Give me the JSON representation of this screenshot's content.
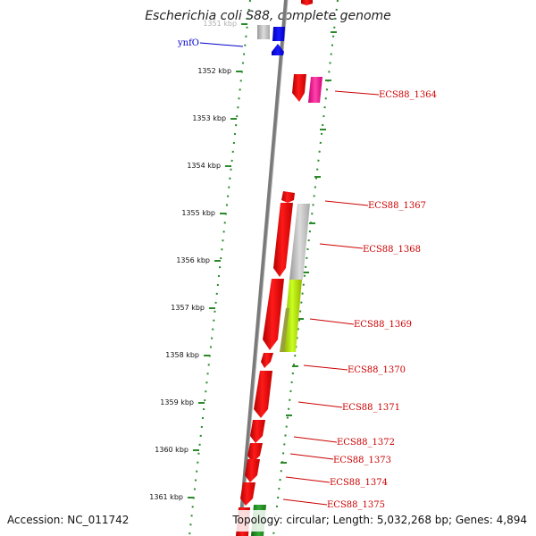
{
  "title": "Escherichia coli S88, complete genome",
  "accession": "Accession: NC_011742",
  "topology": "Topology: circular; Length: 5,032,268 bp; Genes: 4,894",
  "colors": {
    "backbone": "#7a7a7a",
    "forward_cds": "#ff0000",
    "reverse_cds": "#0000ff",
    "pseudo": "#c0c0c0",
    "pink": "#ff3399",
    "lime": "#b6f000",
    "olive": "#9aa040",
    "green": "#228822",
    "label_red": "#cc0000",
    "label_blue": "#0000cc",
    "tick_green": "#2a8a2a"
  },
  "kbp_ticks": [
    "1351 kbp",
    "1352 kbp",
    "1353 kbp",
    "1354 kbp",
    "1355 kbp",
    "1356 kbp",
    "1357 kbp",
    "1358 kbp",
    "1359 kbp",
    "1360 kbp",
    "1361 kbp"
  ],
  "gene_labels": [
    {
      "text": "ynfO",
      "color": "blue"
    },
    {
      "text": "ECS88_1364",
      "color": "red"
    },
    {
      "text": "ECS88_1367",
      "color": "red"
    },
    {
      "text": "ECS88_1368",
      "color": "red"
    },
    {
      "text": "ECS88_1369",
      "color": "red"
    },
    {
      "text": "ECS88_1370",
      "color": "red"
    },
    {
      "text": "ECS88_1371",
      "color": "red"
    },
    {
      "text": "ECS88_1372",
      "color": "red"
    },
    {
      "text": "ECS88_1373",
      "color": "red"
    },
    {
      "text": "ECS88_1374",
      "color": "red"
    },
    {
      "text": "ECS88_1375",
      "color": "red"
    }
  ]
}
